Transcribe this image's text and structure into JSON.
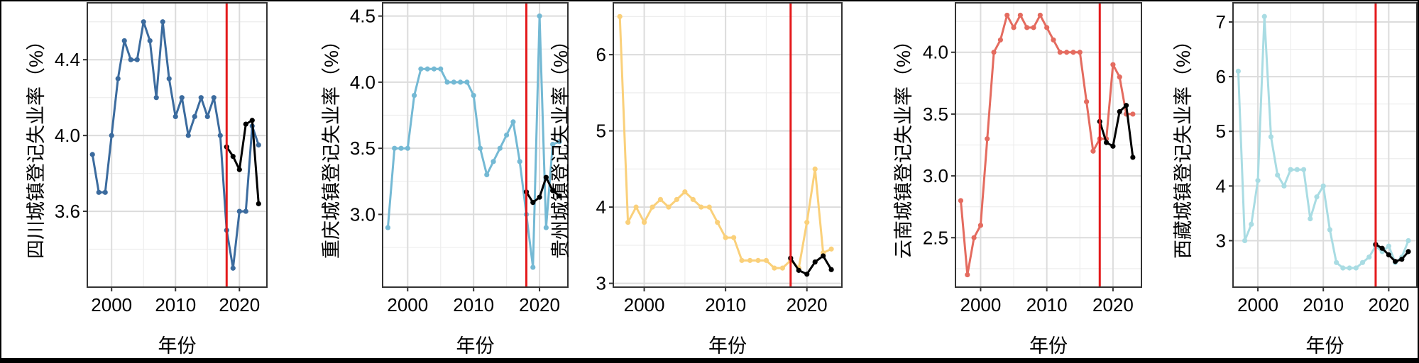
{
  "chart_data": [
    {
      "type": "line",
      "xlabel": "年份",
      "ylabel": "四川城镇登记失业率（%）",
      "xlim": [
        1996.2,
        2024.3
      ],
      "ylim": [
        3.2,
        4.7
      ],
      "xticks": [
        2000,
        2010,
        2020
      ],
      "xtick_labels": [
        "2000",
        "2010",
        "2020"
      ],
      "yticks": [
        3.6,
        4.0,
        4.4
      ],
      "ytick_labels": [
        "3.6",
        "4.0",
        "4.4"
      ],
      "minor_y": [
        3.4,
        3.8,
        4.2,
        4.6
      ],
      "grid": true,
      "color": "#3B6B9E",
      "vline_x": 2018,
      "vline_color": "#E41A1C",
      "series": [
        {
          "x": [
            1997,
            1998,
            1999,
            2000,
            2001,
            2002,
            2003,
            2004,
            2005,
            2006,
            2007,
            2008,
            2009,
            2010,
            2011,
            2012,
            2013,
            2014,
            2015,
            2016,
            2017,
            2018,
            2019,
            2020,
            2021,
            2022,
            2023
          ],
          "y": [
            3.9,
            3.7,
            3.7,
            4.0,
            4.3,
            4.5,
            4.4,
            4.4,
            4.6,
            4.5,
            4.2,
            4.6,
            4.3,
            4.1,
            4.2,
            4.0,
            4.1,
            4.2,
            4.1,
            4.2,
            4.0,
            3.5,
            3.3,
            3.6,
            3.6,
            4.05,
            3.95
          ]
        },
        {
          "x": [
            2018,
            2019,
            2020,
            2021,
            2022,
            2023
          ],
          "y": [
            3.94,
            3.89,
            3.82,
            4.06,
            4.08,
            3.64
          ]
        }
      ]
    },
    {
      "type": "line",
      "xlabel": "年份",
      "ylabel": "重庆城镇登记失业率（%）",
      "xlim": [
        1996.2,
        2024.3
      ],
      "ylim": [
        2.45,
        4.6
      ],
      "xticks": [
        2000,
        2010,
        2020
      ],
      "xtick_labels": [
        "2000",
        "2010",
        "2020"
      ],
      "yticks": [
        3.0,
        3.5,
        4.0,
        4.5
      ],
      "ytick_labels": [
        "3.0",
        "3.5",
        "4.0",
        "4.5"
      ],
      "minor_y": [
        2.75,
        3.25,
        3.75,
        4.25
      ],
      "grid": true,
      "color": "#74B9D4",
      "vline_x": 2018,
      "vline_color": "#E41A1C",
      "series": [
        {
          "x": [
            1997,
            1998,
            1999,
            2000,
            2001,
            2002,
            2003,
            2004,
            2005,
            2006,
            2007,
            2008,
            2009,
            2010,
            2011,
            2012,
            2013,
            2014,
            2015,
            2016,
            2017,
            2018,
            2019,
            2020,
            2021,
            2022,
            2023
          ],
          "y": [
            2.9,
            3.5,
            3.5,
            3.5,
            3.9,
            4.1,
            4.1,
            4.1,
            4.1,
            4.0,
            4.0,
            4.0,
            4.0,
            3.9,
            3.5,
            3.3,
            3.4,
            3.5,
            3.6,
            3.7,
            3.4,
            3.0,
            2.6,
            4.5,
            2.9,
            3.53,
            3.55
          ]
        },
        {
          "x": [
            2018,
            2019,
            2020,
            2021,
            2022,
            2023
          ],
          "y": [
            3.17,
            3.09,
            3.13,
            3.28,
            3.18,
            3.14
          ]
        }
      ]
    },
    {
      "type": "line",
      "xlabel": "年份",
      "ylabel": "贵州城镇登记失业率（%）",
      "xlim": [
        1996.2,
        2024.3
      ],
      "ylim": [
        2.95,
        6.68
      ],
      "xticks": [
        2000,
        2010,
        2020
      ],
      "xtick_labels": [
        "2000",
        "2010",
        "2020"
      ],
      "yticks": [
        3,
        4,
        5,
        6
      ],
      "ytick_labels": [
        "3",
        "4",
        "5",
        "6"
      ],
      "minor_y": [
        3.5,
        4.5,
        5.5,
        6.5
      ],
      "grid": true,
      "color": "#FAD07A",
      "vline_x": 2018,
      "vline_color": "#E41A1C",
      "series": [
        {
          "x": [
            1997,
            1998,
            1999,
            2000,
            2001,
            2002,
            2003,
            2004,
            2005,
            2006,
            2007,
            2008,
            2009,
            2010,
            2011,
            2012,
            2013,
            2014,
            2015,
            2016,
            2017,
            2018,
            2019,
            2020,
            2021,
            2022,
            2023
          ],
          "y": [
            6.5,
            3.8,
            4.0,
            3.8,
            4.0,
            4.1,
            4.0,
            4.1,
            4.2,
            4.1,
            4.0,
            4.0,
            3.8,
            3.6,
            3.6,
            3.3,
            3.3,
            3.3,
            3.3,
            3.2,
            3.2,
            3.3,
            3.2,
            3.8,
            4.5,
            3.4,
            3.45
          ]
        },
        {
          "x": [
            2018,
            2019,
            2020,
            2021,
            2022,
            2023
          ],
          "y": [
            3.33,
            3.17,
            3.12,
            3.28,
            3.36,
            3.18
          ]
        }
      ]
    },
    {
      "type": "line",
      "xlabel": "年份",
      "ylabel": "云南城镇登记失业率（%）",
      "xlim": [
        1996.2,
        2024.3
      ],
      "ylim": [
        2.1,
        4.4
      ],
      "xticks": [
        2000,
        2010,
        2020
      ],
      "xtick_labels": [
        "2000",
        "2010",
        "2020"
      ],
      "yticks": [
        2.5,
        3.0,
        3.5,
        4.0
      ],
      "ytick_labels": [
        "2.5",
        "3.0",
        "3.5",
        "4.0"
      ],
      "minor_y": [
        2.25,
        2.75,
        3.25,
        3.75,
        4.25
      ],
      "grid": true,
      "color": "#E46B5F",
      "vline_x": 2018,
      "vline_color": "#E41A1C",
      "series": [
        {
          "x": [
            1997,
            1998,
            1999,
            2000,
            2001,
            2002,
            2003,
            2004,
            2005,
            2006,
            2007,
            2008,
            2009,
            2010,
            2011,
            2012,
            2013,
            2014,
            2015,
            2016,
            2017,
            2018,
            2019,
            2020,
            2021,
            2022,
            2023
          ],
          "y": [
            2.8,
            2.2,
            2.5,
            2.6,
            3.3,
            4.0,
            4.1,
            4.3,
            4.2,
            4.3,
            4.2,
            4.2,
            4.3,
            4.2,
            4.1,
            4.0,
            4.0,
            4.0,
            4.0,
            3.6,
            3.2,
            3.3,
            3.3,
            3.9,
            3.8,
            3.5,
            3.5
          ]
        },
        {
          "x": [
            2018,
            2019,
            2020,
            2021,
            2022,
            2023
          ],
          "y": [
            3.44,
            3.27,
            3.24,
            3.52,
            3.57,
            3.15
          ]
        }
      ]
    },
    {
      "type": "line",
      "xlabel": "年份",
      "ylabel": "西藏城镇登记失业率（%）",
      "xlim": [
        1996.2,
        2024.3
      ],
      "ylim": [
        2.15,
        7.35
      ],
      "xticks": [
        2000,
        2010,
        2020
      ],
      "xtick_labels": [
        "2000",
        "2010",
        "2020"
      ],
      "yticks": [
        3,
        4,
        5,
        6,
        7
      ],
      "ytick_labels": [
        "3",
        "4",
        "5",
        "6",
        "7"
      ],
      "minor_y": [
        2.5,
        3.5,
        4.5,
        5.5,
        6.5
      ],
      "grid": true,
      "color": "#A9DCE3",
      "vline_x": 2018,
      "vline_color": "#E41A1C",
      "series": [
        {
          "x": [
            1997,
            1998,
            1999,
            2000,
            2001,
            2002,
            2003,
            2004,
            2005,
            2006,
            2007,
            2008,
            2009,
            2010,
            2011,
            2012,
            2013,
            2014,
            2015,
            2016,
            2017,
            2018,
            2019,
            2020,
            2021,
            2022,
            2023
          ],
          "y": [
            6.1,
            3.0,
            3.3,
            4.1,
            7.1,
            4.9,
            4.2,
            4.0,
            4.3,
            4.3,
            4.3,
            3.4,
            3.8,
            4.0,
            3.2,
            2.6,
            2.5,
            2.5,
            2.5,
            2.6,
            2.7,
            2.9,
            2.8,
            2.9,
            2.6,
            2.7,
            3.0
          ]
        },
        {
          "x": [
            2018,
            2019,
            2020,
            2021,
            2022,
            2023
          ],
          "y": [
            2.93,
            2.86,
            2.74,
            2.62,
            2.66,
            2.8
          ]
        }
      ]
    }
  ]
}
